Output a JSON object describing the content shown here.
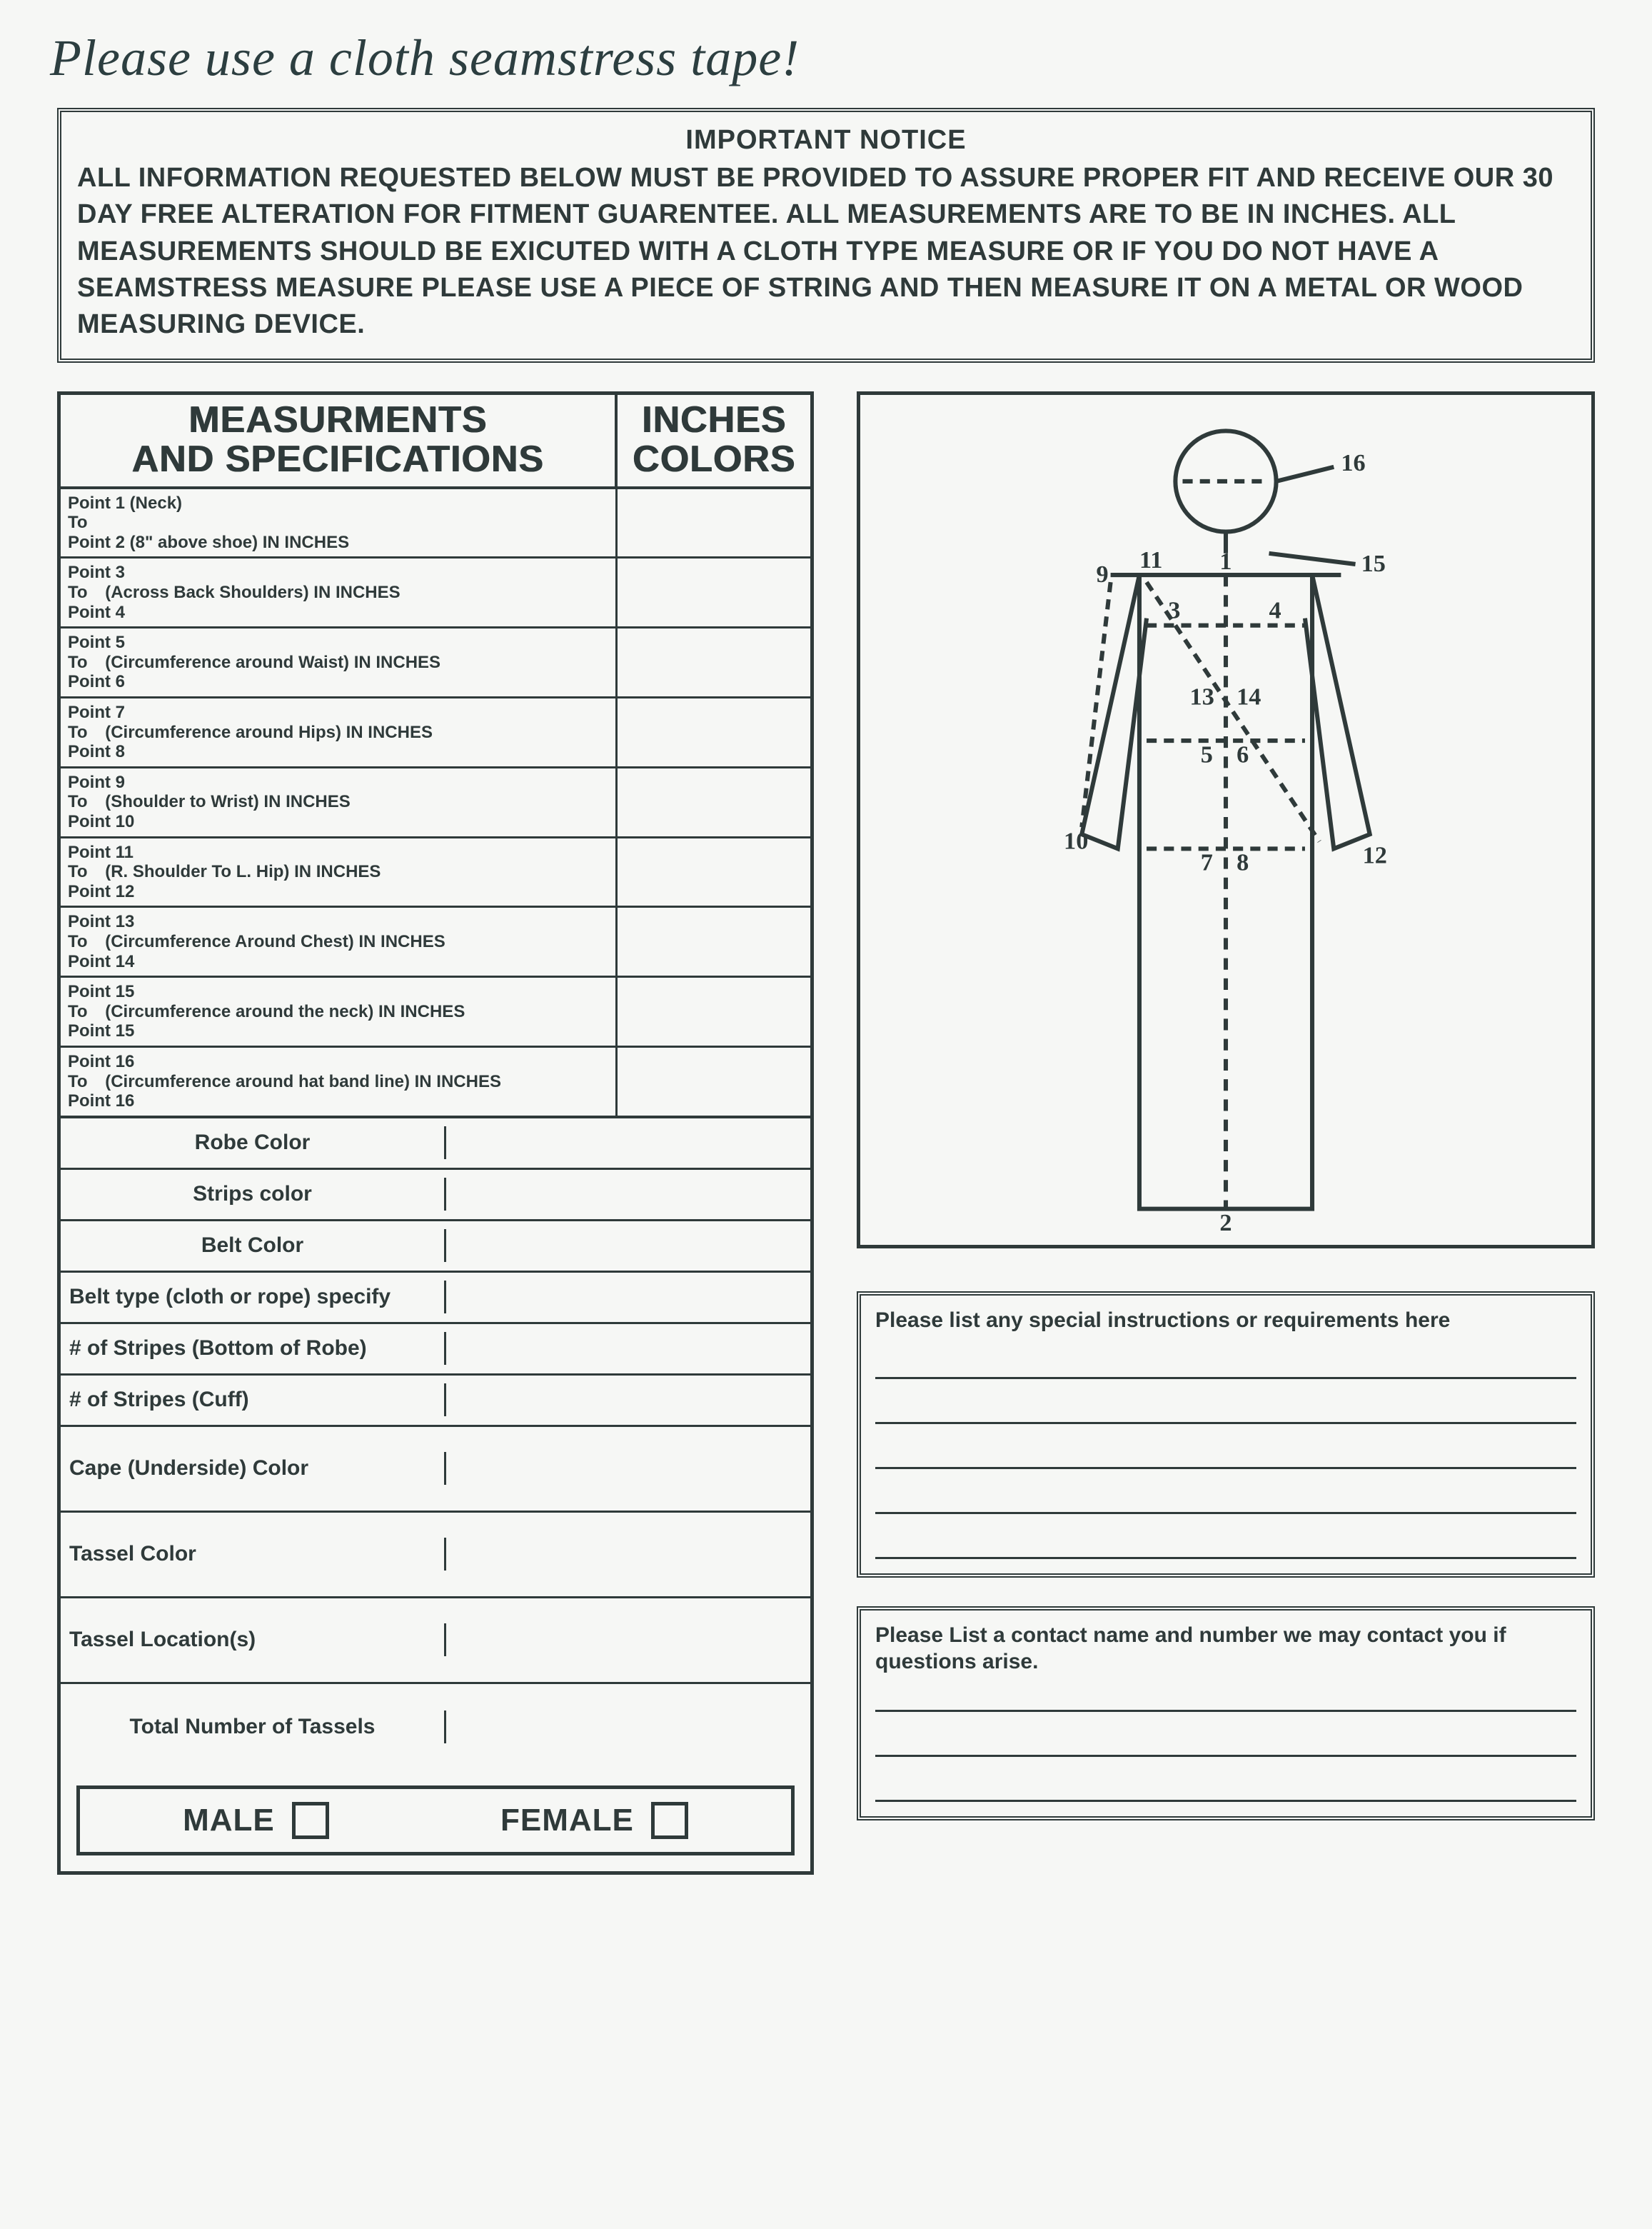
{
  "handwriting_note": "Please use a cloth seamstress tape!",
  "notice": {
    "title": "IMPORTANT NOTICE",
    "body": "ALL INFORMATION REQUESTED BELOW MUST BE PROVIDED TO ASSURE PROPER FIT AND RECEIVE OUR 30 DAY FREE ALTERATION FOR FITMENT GUARENTEE. ALL MEASUREMENTS ARE TO BE IN INCHES. ALL MEASUREMENTS SHOULD BE EXICUTED WITH A CLOTH TYPE MEASURE OR IF YOU DO NOT HAVE A SEAMSTRESS MEASURE PLEASE USE A PIECE OF STRING AND THEN MEASURE IT ON A METAL OR WOOD MEASURING DEVICE."
  },
  "meas_header": {
    "left_line1": "MEASURMENTS",
    "left_line2": "AND SPECIFICATIONS",
    "right_line1": "INCHES",
    "right_line2": "COLORS"
  },
  "measurements": [
    {
      "from": "Point 1 (Neck)",
      "to": "To",
      "toPt": "Point 2 (8\" above shoe)",
      "desc": "IN INCHES"
    },
    {
      "from": "Point 3",
      "to": "To",
      "toPt": "Point 4",
      "desc": "(Across Back Shoulders) IN INCHES"
    },
    {
      "from": "Point 5",
      "to": "To",
      "toPt": "Point 6",
      "desc": "(Circumference around Waist) IN INCHES"
    },
    {
      "from": "Point 7",
      "to": "To",
      "toPt": "Point 8",
      "desc": "(Circumference around Hips) IN INCHES"
    },
    {
      "from": "Point 9",
      "to": "To",
      "toPt": "Point 10",
      "desc": "(Shoulder to Wrist) IN INCHES"
    },
    {
      "from": "Point 11",
      "to": "To",
      "toPt": "Point 12",
      "desc": "(R. Shoulder To L. Hip) IN INCHES"
    },
    {
      "from": "Point 13",
      "to": "To",
      "toPt": "Point 14",
      "desc": "(Circumference Around Chest) IN INCHES"
    },
    {
      "from": "Point 15",
      "to": "To",
      "toPt": "Point 15",
      "desc": "(Circumference around the neck) IN INCHES"
    },
    {
      "from": "Point 16",
      "to": "To",
      "toPt": "Point 16",
      "desc": "(Circumference around hat band line) IN INCHES"
    }
  ],
  "specs": [
    {
      "label": "Robe Color",
      "tall": false,
      "align": "center"
    },
    {
      "label": "Strips color",
      "tall": false,
      "align": "center"
    },
    {
      "label": "Belt Color",
      "tall": false,
      "align": "center"
    },
    {
      "label": "Belt type (cloth or rope) specify",
      "tall": false,
      "align": "left"
    },
    {
      "label": "# of Stripes (Bottom of Robe)",
      "tall": false,
      "align": "left"
    },
    {
      "label": "# of Stripes (Cuff)",
      "tall": false,
      "align": "left"
    },
    {
      "label": "Cape (Underside) Color",
      "tall": true,
      "align": "left"
    },
    {
      "label": "Tassel          Color",
      "tall": true,
      "align": "left"
    },
    {
      "label": "Tassel        Location(s)",
      "tall": true,
      "align": "left"
    },
    {
      "label": "Total Number of Tassels",
      "tall": true,
      "align": "center"
    }
  ],
  "gender": {
    "male": "MALE",
    "female": "FEMALE"
  },
  "diagram_labels": {
    "n1": "1",
    "n2": "2",
    "n3": "3",
    "n4": "4",
    "n5": "5",
    "n6": "6",
    "n7": "7",
    "n8": "8",
    "n9": "9",
    "n10": "10",
    "n11": "11",
    "n12": "12",
    "n13": "13",
    "n14": "14",
    "n15": "15",
    "n16": "16"
  },
  "instructions_title": "Please list any special instructions or requirements here",
  "contact_title": "Please List a contact name and number we may contact you if questions arise.",
  "colors": {
    "ink": "#2f3a3a",
    "paper": "#f6f7f5"
  }
}
